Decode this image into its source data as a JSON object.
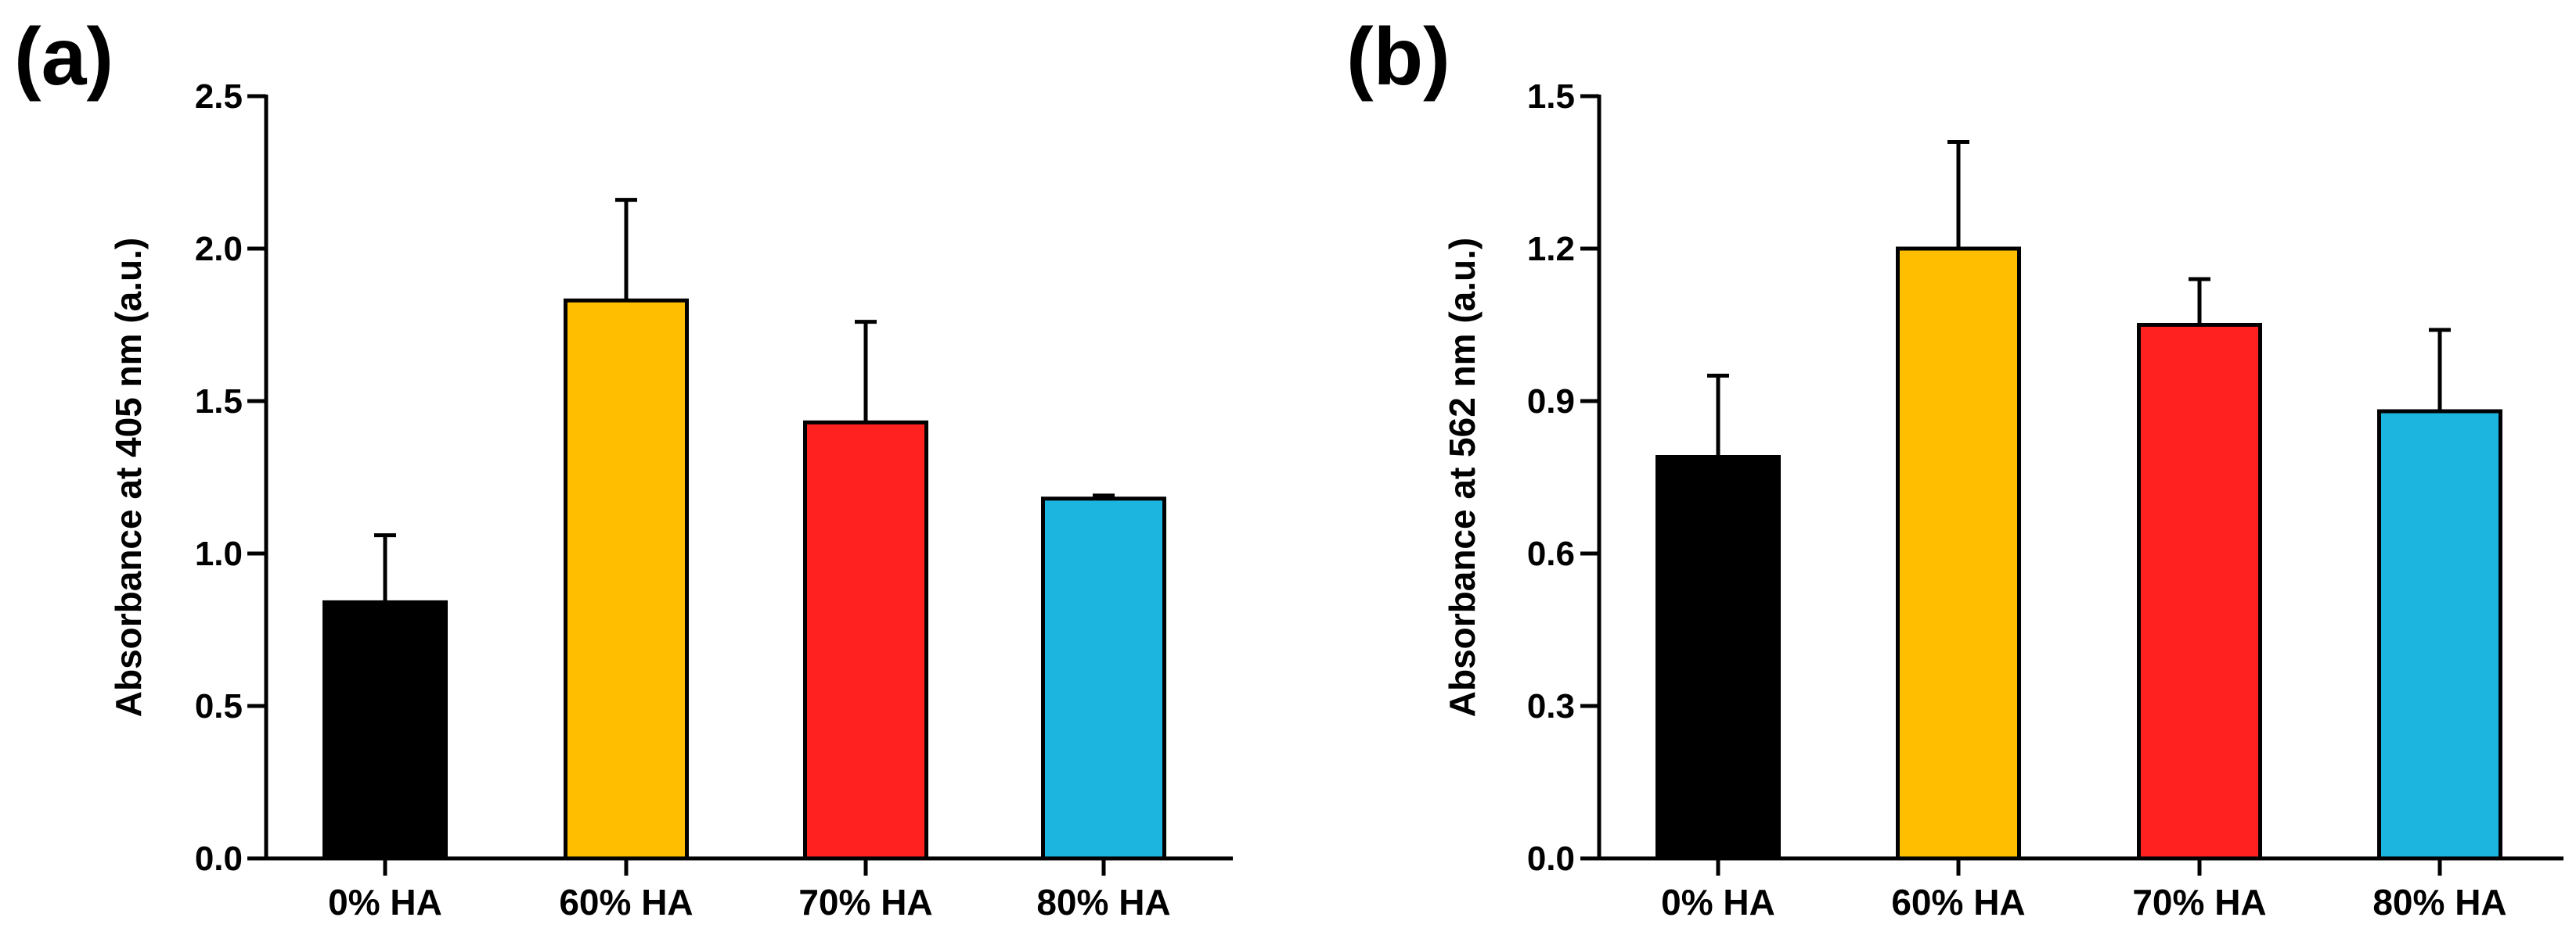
{
  "colors": {
    "bar_0": "#000000",
    "bar_60": "#FFBF00",
    "bar_70": "#FF2020",
    "bar_80": "#1CB5E0",
    "axis": "#000000"
  },
  "chart_data": [
    {
      "type": "bar",
      "panel_label": "(a)",
      "categories": [
        "0% HA",
        "60% HA",
        "70% HA",
        "80% HA"
      ],
      "values": [
        0.84,
        1.83,
        1.43,
        1.18
      ],
      "errors": [
        0.22,
        0.33,
        0.33,
        0.01
      ],
      "ylabel": "Absorbance at 405 nm (a.u.)",
      "xlabel": "",
      "ylim": [
        0,
        2.5
      ],
      "yticks": [
        0.0,
        0.5,
        1.0,
        1.5,
        2.0,
        2.5
      ],
      "ytick_labels": [
        "0.0",
        "0.5",
        "1.0",
        "1.5",
        "2.0",
        "2.5"
      ],
      "grid": false
    },
    {
      "type": "bar",
      "panel_label": "(b)",
      "categories": [
        "0% HA",
        "60% HA",
        "70% HA",
        "80% HA"
      ],
      "values": [
        0.79,
        1.2,
        1.05,
        0.88
      ],
      "errors": [
        0.16,
        0.21,
        0.09,
        0.16
      ],
      "ylabel": "Absorbance at 562 nm (a.u.)",
      "xlabel": "",
      "ylim": [
        0,
        1.5
      ],
      "yticks": [
        0.0,
        0.3,
        0.6,
        0.9,
        1.2,
        1.5
      ],
      "ytick_labels": [
        "0.0",
        "0.3",
        "0.6",
        "0.9",
        "1.2",
        "1.5"
      ],
      "grid": false
    }
  ]
}
